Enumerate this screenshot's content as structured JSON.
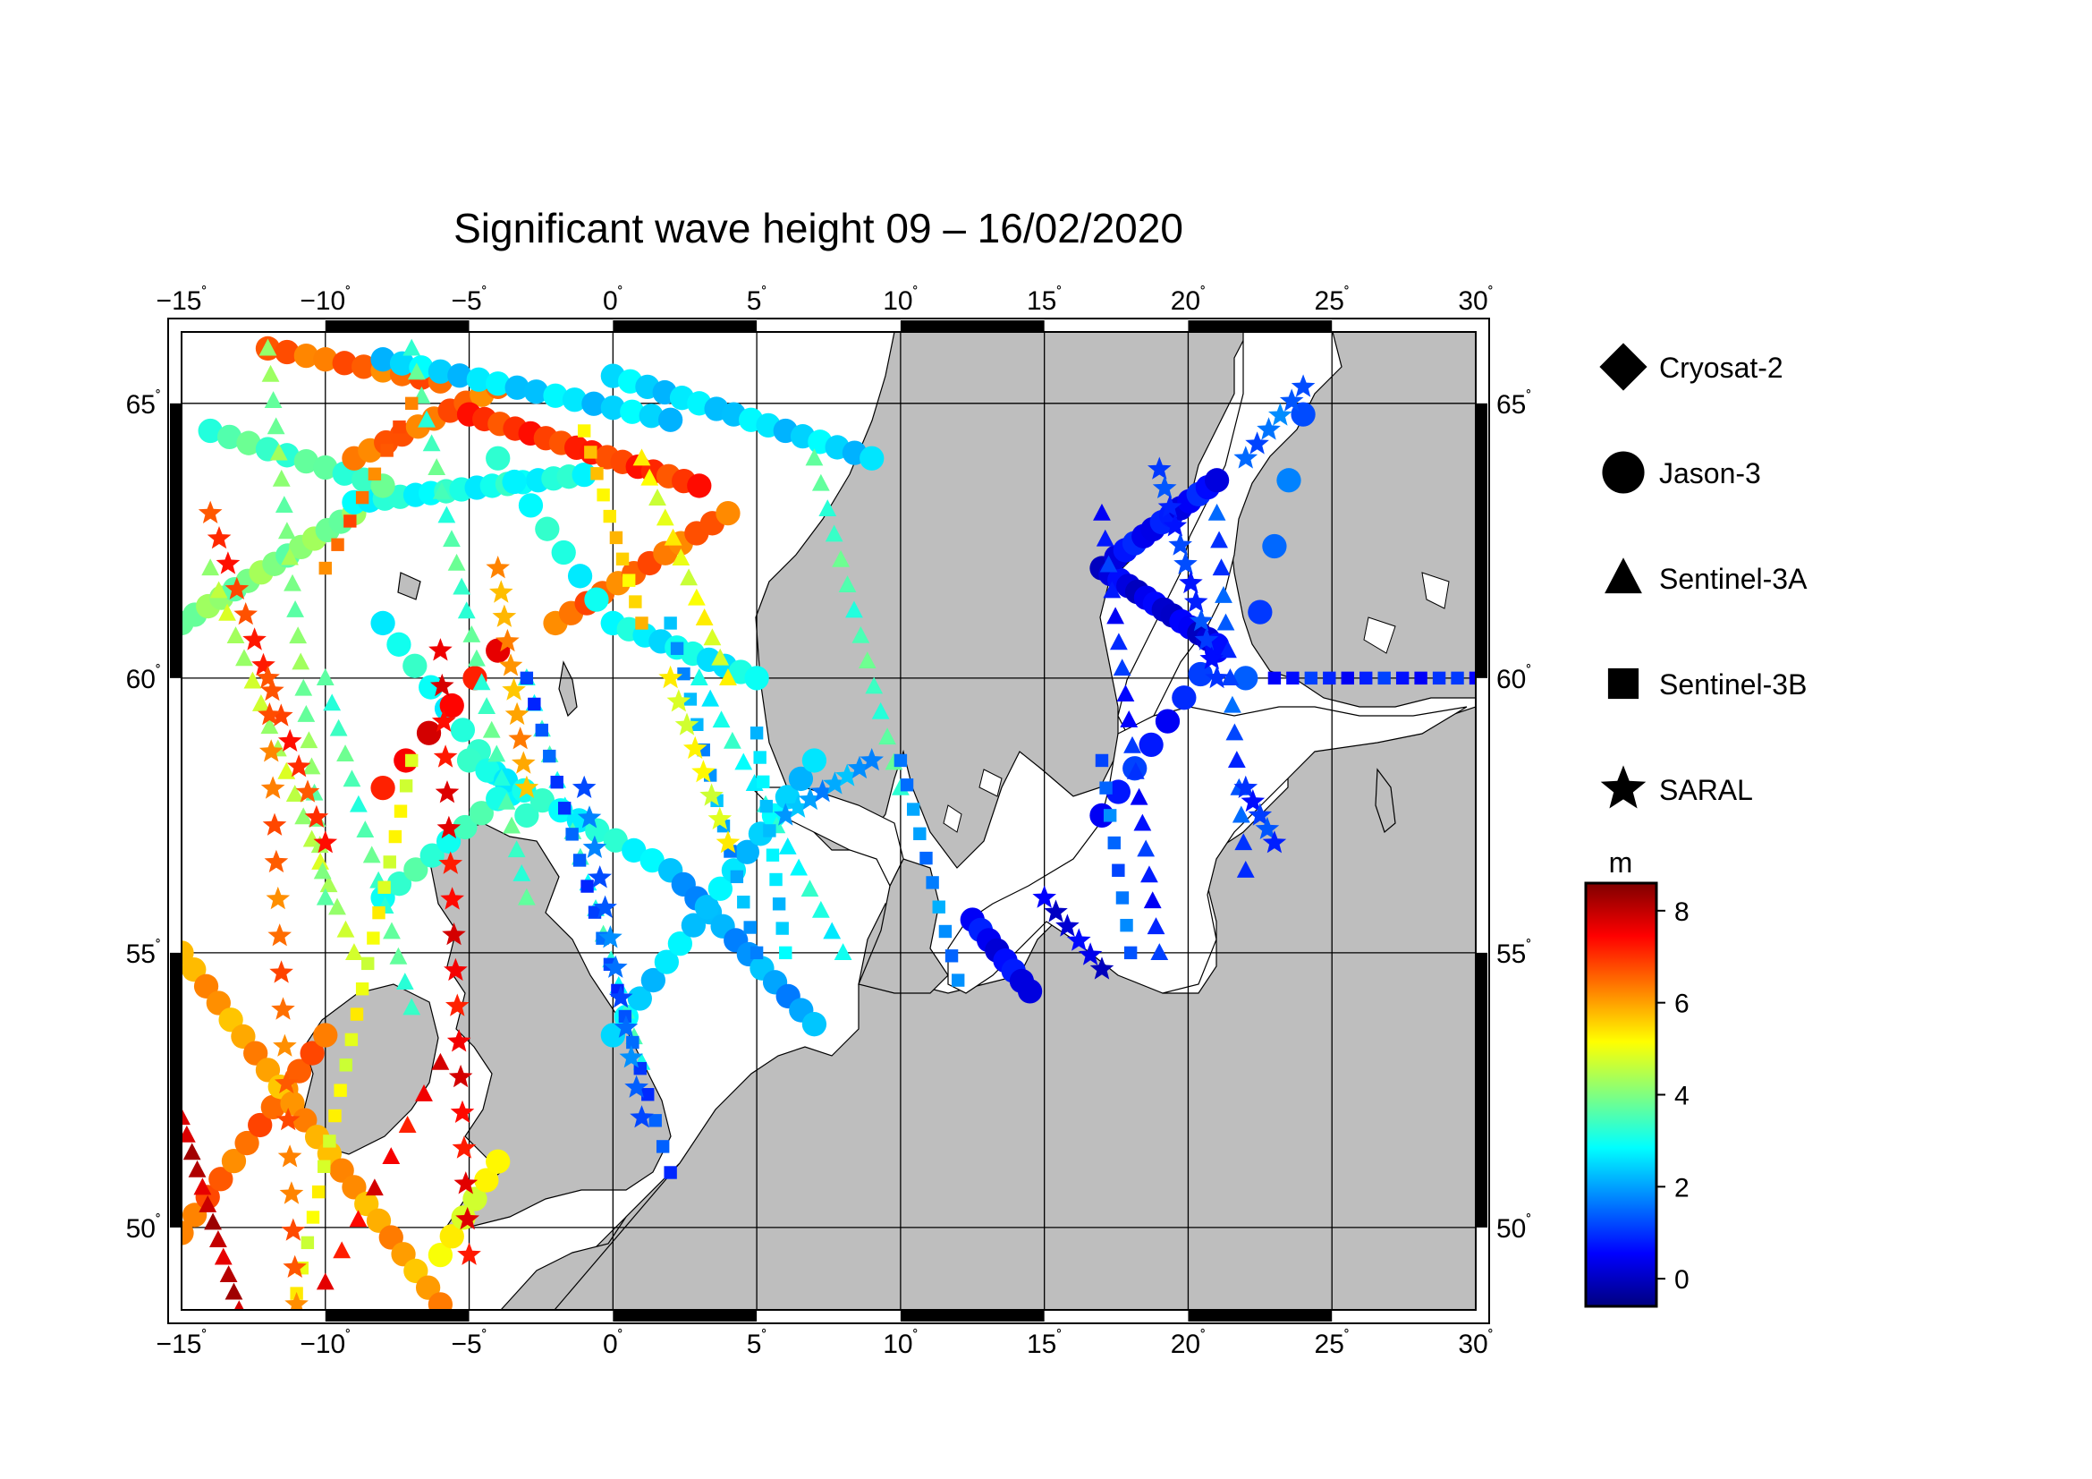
{
  "title": "Significant wave height 09 – 16/02/2020",
  "map": {
    "lon_range": [
      -15,
      30
    ],
    "lat_range": [
      48.5,
      66.3
    ],
    "lon_ticks": [
      -15,
      -10,
      -5,
      0,
      5,
      10,
      15,
      20,
      25,
      30
    ],
    "lon_labels": [
      "−15",
      "−10",
      "−5",
      "0",
      "5",
      "10",
      "15",
      "20",
      "25",
      "30"
    ],
    "lat_ticks": [
      50,
      55,
      60,
      65
    ],
    "lat_labels": [
      "50",
      "55",
      "60",
      "65"
    ],
    "degree_symbol": "˚",
    "land_color": "#bebebe",
    "sea_color": "#ffffff"
  },
  "legend": {
    "items": [
      {
        "label": "Cryosat-2",
        "symbol": "diamond"
      },
      {
        "label": "Jason-3",
        "symbol": "circle"
      },
      {
        "label": "Sentinel-3A",
        "symbol": "triangle"
      },
      {
        "label": "Sentinel-3B",
        "symbol": "square"
      },
      {
        "label": "SARAL",
        "symbol": "star"
      }
    ]
  },
  "colorbar": {
    "unit": "m",
    "min": -0.6,
    "max": 8.6,
    "ticks": [
      0,
      2,
      4,
      6,
      8
    ],
    "tick_labels": [
      "0",
      "2",
      "4",
      "6",
      "8"
    ],
    "colormap": "jet"
  },
  "chart_data": {
    "type": "scatter",
    "title": "Significant wave height 09 – 16/02/2020",
    "xlabel": "",
    "ylabel": "",
    "xlim": [
      -15,
      30
    ],
    "ylim": [
      48.5,
      66.3
    ],
    "value_unit": "m",
    "series": [
      {
        "name": "Jason-3",
        "symbol": "circle",
        "tracks": [
          {
            "from": [
              -15,
              61.0
            ],
            "to": [
              -9,
              63.0
            ],
            "value": 4.0,
            "n": 14
          },
          {
            "from": [
              -9,
              63.2
            ],
            "to": [
              -1,
              63.7
            ],
            "value": 3.0,
            "n": 16
          },
          {
            "from": [
              -14,
              64.5
            ],
            "to": [
              -8,
              63.5
            ],
            "value": 3.5,
            "n": 10
          },
          {
            "from": [
              -12,
              66.0
            ],
            "to": [
              -6,
              65.4
            ],
            "value": 6.5,
            "n": 10
          },
          {
            "from": [
              -9,
              64.0
            ],
            "to": [
              -4,
              65.3
            ],
            "value": 6.5,
            "n": 10
          },
          {
            "from": [
              -5,
              64.8
            ],
            "to": [
              3,
              63.5
            ],
            "value": 7.0,
            "n": 16
          },
          {
            "from": [
              -2,
              61.0
            ],
            "to": [
              4,
              63.0
            ],
            "value": 6.5,
            "n": 12
          },
          {
            "from": [
              -8,
              65.8
            ],
            "to": [
              2,
              64.7
            ],
            "value": 2.5,
            "n": 16
          },
          {
            "from": [
              0,
              65.5
            ],
            "to": [
              9,
              64.0
            ],
            "value": 2.5,
            "n": 16
          },
          {
            "from": [
              -4,
              64.0
            ],
            "to": [
              0,
              61.0
            ],
            "value": 3.0,
            "n": 8
          },
          {
            "from": [
              0,
              61.0
            ],
            "to": [
              5,
              60.0
            ],
            "value": 2.8,
            "n": 10
          },
          {
            "from": [
              -8,
              61.0
            ],
            "to": [
              -3,
              57.5
            ],
            "value": 3.0,
            "n": 10
          },
          {
            "from": [
              -5,
              58.5
            ],
            "to": [
              2,
              56.5
            ],
            "value": 3.0,
            "n": 12
          },
          {
            "from": [
              2,
              56.5
            ],
            "to": [
              7,
              53.7
            ],
            "value": 2.0,
            "n": 12
          },
          {
            "from": [
              0,
              53.5
            ],
            "to": [
              7,
              58.5
            ],
            "value": 2.5,
            "n": 16
          },
          {
            "from": [
              -15,
              49.9
            ],
            "to": [
              -10,
              53.5
            ],
            "value": 6.5,
            "n": 12
          },
          {
            "from": [
              -15,
              55.0
            ],
            "to": [
              -6,
              48.6
            ],
            "value": 6.0,
            "n": 22
          },
          {
            "from": [
              -6,
              49.5
            ],
            "to": [
              -4,
              51.2
            ],
            "value": 5.0,
            "n": 6
          },
          {
            "from": [
              -8,
              56.0
            ],
            "to": [
              -4,
              57.8
            ],
            "value": 3.3,
            "n": 8
          },
          {
            "from": [
              -8,
              58.0
            ],
            "to": [
              -4,
              60.5
            ],
            "value": 7.5,
            "n": 6
          },
          {
            "from": [
              17,
              57.5
            ],
            "to": [
              21,
              60.5
            ],
            "value": 0.8,
            "n": 8
          },
          {
            "from": [
              17,
              62.0
            ],
            "to": [
              21,
              60.6
            ],
            "value": 0.3,
            "n": 14
          },
          {
            "from": [
              17.5,
              62.2
            ],
            "to": [
              21,
              63.6
            ],
            "value": 0.6,
            "n": 12
          },
          {
            "from": [
              12.5,
              55.6
            ],
            "to": [
              14.5,
              54.3
            ],
            "value": 0.5,
            "n": 8
          },
          {
            "from": [
              22,
              60.0
            ],
            "to": [
              24,
              64.8
            ],
            "value": 1.4,
            "n": 5
          }
        ]
      },
      {
        "name": "Sentinel-3A",
        "symbol": "triangle",
        "tracks": [
          {
            "from": [
              -15,
              52.0
            ],
            "to": [
              -13,
              48.5
            ],
            "value": 8.0,
            "n": 12
          },
          {
            "from": [
              -14,
              62.0
            ],
            "to": [
              -9,
              55.0
            ],
            "value": 4.5,
            "n": 18
          },
          {
            "from": [
              -12,
              66.0
            ],
            "to": [
              -10,
              56.0
            ],
            "value": 4.0,
            "n": 22
          },
          {
            "from": [
              -10,
              60.0
            ],
            "to": [
              -7,
              54.0
            ],
            "value": 3.5,
            "n": 14
          },
          {
            "from": [
              -7,
              66.0
            ],
            "to": [
              -3,
              56.0
            ],
            "value": 3.5,
            "n": 24
          },
          {
            "from": [
              -3,
              60.0
            ],
            "to": [
              1,
              53.0
            ],
            "value": 3.2,
            "n": 16
          },
          {
            "from": [
              1,
              64.0
            ],
            "to": [
              4,
              60.0
            ],
            "value": 5.0,
            "n": 12
          },
          {
            "from": [
              3,
              60.0
            ],
            "to": [
              8,
              55.0
            ],
            "value": 3.0,
            "n": 14
          },
          {
            "from": [
              7,
              64.0
            ],
            "to": [
              10,
              58.0
            ],
            "value": 3.5,
            "n": 14
          },
          {
            "from": [
              17,
              63.0
            ],
            "to": [
              19,
              55.0
            ],
            "value": 0.8,
            "n": 18
          },
          {
            "from": [
              21,
              63.0
            ],
            "to": [
              22,
              56.5
            ],
            "value": 1.2,
            "n": 14
          },
          {
            "from": [
              -10,
              49.0
            ],
            "to": [
              -6,
              53.0
            ],
            "value": 7.5,
            "n": 8
          }
        ]
      },
      {
        "name": "Sentinel-3B",
        "symbol": "square",
        "tracks": [
          {
            "from": [
              -11,
              48.8
            ],
            "to": [
              -7,
              58.5
            ],
            "value": 5.0,
            "n": 22
          },
          {
            "from": [
              -7,
              65.0
            ],
            "to": [
              -10,
              62.0
            ],
            "value": 6.5,
            "n": 8
          },
          {
            "from": [
              -3,
              60.0
            ],
            "to": [
              2,
              51.0
            ],
            "value": 1.2,
            "n": 20
          },
          {
            "from": [
              2,
              61.0
            ],
            "to": [
              5,
              55.0
            ],
            "value": 2.0,
            "n": 14
          },
          {
            "from": [
              5,
              59.0
            ],
            "to": [
              6,
              55.0
            ],
            "value": 2.5,
            "n": 10
          },
          {
            "from": [
              10,
              58.5
            ],
            "to": [
              12,
              54.5
            ],
            "value": 1.8,
            "n": 10
          },
          {
            "from": [
              17,
              58.5
            ],
            "to": [
              18,
              55.0
            ],
            "value": 1.5,
            "n": 8
          },
          {
            "from": [
              23,
              60.0
            ],
            "to": [
              30,
              60.0
            ],
            "value": 0.8,
            "n": 12
          },
          {
            "from": [
              -1,
              64.5
            ],
            "to": [
              1,
              61.0
            ],
            "value": 5.5,
            "n": 10
          }
        ]
      },
      {
        "name": "SARAL",
        "symbol": "star",
        "tracks": [
          {
            "from": [
              -14,
              63.0
            ],
            "to": [
              -10,
              57.0
            ],
            "value": 7.0,
            "n": 14
          },
          {
            "from": [
              -12,
              60.0
            ],
            "to": [
              -11,
              48.6
            ],
            "value": 6.5,
            "n": 18
          },
          {
            "from": [
              -6,
              60.5
            ],
            "to": [
              -5,
              49.5
            ],
            "value": 7.5,
            "n": 18
          },
          {
            "from": [
              -4,
              62.0
            ],
            "to": [
              -3,
              58.0
            ],
            "value": 6.0,
            "n": 10
          },
          {
            "from": [
              -1,
              58.0
            ],
            "to": [
              1,
              52.0
            ],
            "value": 1.5,
            "n": 12
          },
          {
            "from": [
              2,
              60.0
            ],
            "to": [
              4,
              57.0
            ],
            "value": 5.0,
            "n": 8
          },
          {
            "from": [
              6,
              57.5
            ],
            "to": [
              9,
              58.5
            ],
            "value": 2.0,
            "n": 8
          },
          {
            "from": [
              15,
              56.0
            ],
            "to": [
              17,
              54.7
            ],
            "value": 0.3,
            "n": 6
          },
          {
            "from": [
              19,
              63.8
            ],
            "to": [
              21,
              60.0
            ],
            "value": 1.0,
            "n": 12
          },
          {
            "from": [
              22,
              58.0
            ],
            "to": [
              23,
              57.0
            ],
            "value": 1.0,
            "n": 5
          },
          {
            "from": [
              22,
              64.0
            ],
            "to": [
              24,
              65.3
            ],
            "value": 1.5,
            "n": 6
          }
        ]
      }
    ]
  }
}
